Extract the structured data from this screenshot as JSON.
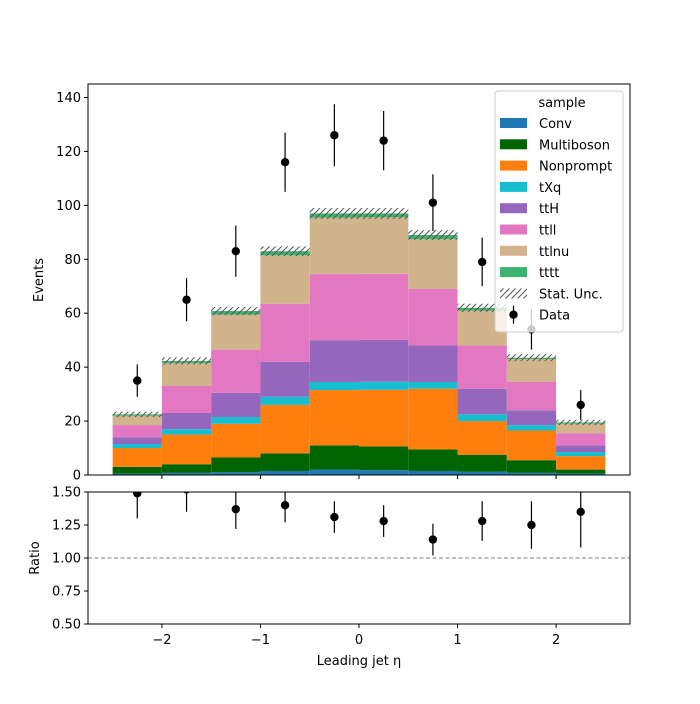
{
  "chart_data": [
    {
      "type": "bar",
      "subtype": "stacked-histogram",
      "ylabel": "Events",
      "ylim": [
        0,
        145
      ],
      "yticks": [
        0,
        20,
        40,
        60,
        80,
        100,
        120,
        140
      ],
      "xlim": [
        -2.75,
        2.75
      ],
      "bin_edges": [
        -2.5,
        -2.0,
        -1.5,
        -1.0,
        -0.5,
        0.0,
        0.5,
        1.0,
        1.5,
        2.0,
        2.5
      ],
      "legend": {
        "title": "sample",
        "placement": "top-right"
      },
      "stat_unc_label": "Stat. Unc.",
      "series": [
        {
          "name": "Conv",
          "color": "#1f77b4",
          "values": [
            0.5,
            0.8,
            1.0,
            1.5,
            2.0,
            1.8,
            1.5,
            1.2,
            0.8,
            0.5
          ]
        },
        {
          "name": "Multiboson",
          "color": "#006400",
          "values": [
            2.5,
            3.2,
            5.5,
            6.5,
            9.0,
            8.8,
            8.0,
            6.3,
            4.7,
            1.5
          ]
        },
        {
          "name": "Nonprompt",
          "color": "#ff7f0e",
          "values": [
            7.0,
            11.0,
            12.5,
            18.0,
            20.5,
            21.0,
            22.5,
            12.5,
            11.0,
            5.0
          ]
        },
        {
          "name": "tXq",
          "color": "#17becf",
          "values": [
            1.5,
            2.0,
            2.5,
            3.0,
            3.0,
            3.0,
            2.5,
            2.5,
            2.0,
            1.5
          ]
        },
        {
          "name": "ttH",
          "color": "#9467bd",
          "values": [
            2.5,
            6.0,
            9.0,
            13.0,
            15.5,
            15.5,
            13.5,
            9.5,
            5.5,
            2.5
          ]
        },
        {
          "name": "ttll",
          "color": "#e377c2",
          "values": [
            4.5,
            10.0,
            16.0,
            21.5,
            24.5,
            24.5,
            21.0,
            16.0,
            10.5,
            4.5
          ]
        },
        {
          "name": "ttlnu",
          "color": "#d2b48c",
          "values": [
            3.5,
            8.5,
            13.0,
            18.0,
            21.0,
            21.0,
            18.5,
            13.0,
            8.5,
            3.5
          ]
        },
        {
          "name": "tttt",
          "color": "#3cb371",
          "values": [
            0.5,
            0.8,
            1.3,
            1.5,
            1.5,
            1.4,
            1.5,
            1.0,
            0.5,
            0.5
          ]
        }
      ],
      "stat_unc": [
        1.0,
        1.3,
        1.5,
        1.8,
        2.0,
        2.0,
        1.8,
        1.5,
        1.3,
        1.0
      ],
      "data": {
        "name": "Data",
        "x": [
          -2.25,
          -1.75,
          -1.25,
          -0.75,
          -0.25,
          0.25,
          0.75,
          1.25,
          1.75,
          2.25
        ],
        "y": [
          35,
          65,
          83,
          116,
          126,
          124,
          101,
          79,
          54,
          26
        ],
        "yerr": [
          6,
          8,
          9.5,
          11,
          11.5,
          11,
          10.5,
          9,
          7.5,
          5.5
        ]
      }
    },
    {
      "type": "scatter",
      "subtype": "ratio",
      "xlabel": "Leading jet  η",
      "ylabel": "Ratio",
      "ylim": [
        0.5,
        1.5
      ],
      "yticks": [
        "0.50",
        "0.75",
        "1.00",
        "1.25",
        "1.50"
      ],
      "xticks": [
        "−2",
        "−1",
        "0",
        "1",
        "2"
      ],
      "xtick_values": [
        -2,
        -1,
        0,
        1,
        2
      ],
      "reference_line": 1.0,
      "x": [
        -2.25,
        -1.75,
        -1.25,
        -0.75,
        -0.25,
        0.25,
        0.75,
        1.25,
        1.75,
        2.25
      ],
      "y": [
        1.49,
        1.52,
        1.37,
        1.4,
        1.31,
        1.28,
        1.14,
        1.28,
        1.25,
        1.35
      ],
      "yerr": [
        0.19,
        0.17,
        0.15,
        0.13,
        0.12,
        0.12,
        0.12,
        0.15,
        0.18,
        0.27
      ]
    }
  ]
}
